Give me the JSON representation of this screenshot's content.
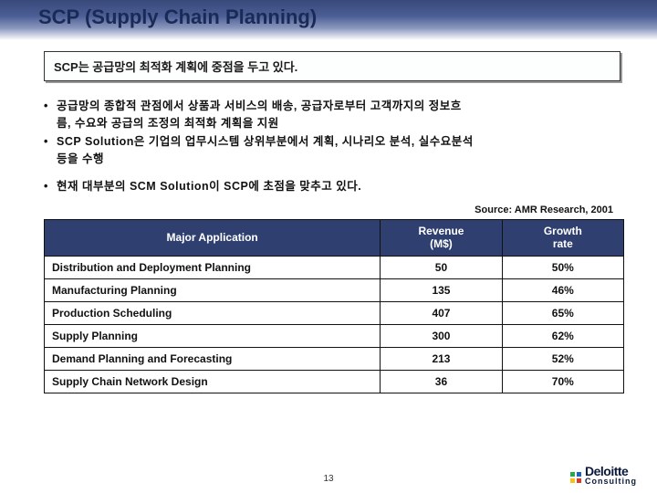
{
  "title": "SCP (Supply Chain Planning)",
  "subtitle": "SCP는 공급망의 최적화 계획에 중점을 두고 있다.",
  "bullets": {
    "b1a": "공급망의 종합적 관점에서 상품과 서비스의 배송, 공급자로부터 고객까지의 정보흐",
    "b1b": "름, 수요와 공급의 조정의 최적화 계획을 지원",
    "b2a": "SCP Solution은 기업의 업무시스템 상위부분에서 계획, 시나리오 분석, 실수요분석",
    "b2b": "등을 수행",
    "b3": "현재 대부분의 SCM Solution이 SCP에 초점을 맞추고 있다."
  },
  "source": "Source: AMR Research, 2001",
  "table": {
    "headers": {
      "h1": "Major Application",
      "h2": "Revenue\n(M$)",
      "h3": "Growth\nrate"
    },
    "rows": [
      {
        "app": "Distribution and Deployment Planning",
        "rev": "50",
        "gr": "50%"
      },
      {
        "app": "Manufacturing Planning",
        "rev": "135",
        "gr": "46%"
      },
      {
        "app": "Production Scheduling",
        "rev": "407",
        "gr": "65%"
      },
      {
        "app": "Supply Planning",
        "rev": "300",
        "gr": "62%"
      },
      {
        "app": "Demand Planning and Forecasting",
        "rev": "213",
        "gr": "52%"
      },
      {
        "app": "Supply Chain Network Design",
        "rev": "36",
        "gr": "70%"
      }
    ]
  },
  "page_number": "13",
  "logo": {
    "main": "Deloitte",
    "sub": "Consulting",
    "dot_colors": [
      "#2aa84a",
      "#1e62c9",
      "#f5c21a",
      "#d83a2b"
    ]
  },
  "colors": {
    "header_bg": "#2f4070",
    "border": "#111111",
    "title_color": "#1a2a56"
  }
}
